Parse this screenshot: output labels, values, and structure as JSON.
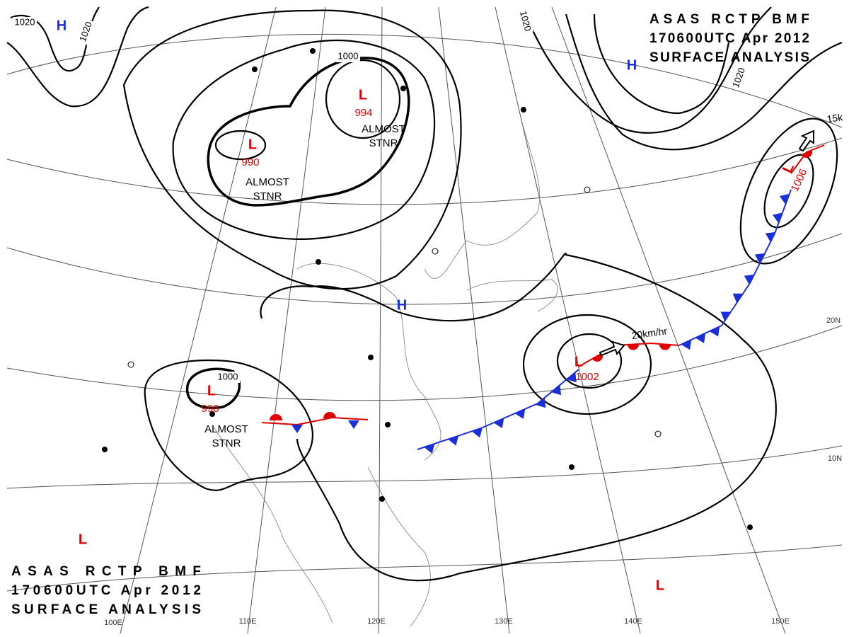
{
  "header": {
    "title_lines": [
      "ASAS RCTP BMF",
      "170600UTC Apr 2012",
      "SURFACE ANALYSIS"
    ]
  },
  "systems": [
    {
      "symbol": "L",
      "pressure": 990,
      "status": [
        "ALMOST",
        "STNR"
      ]
    },
    {
      "symbol": "L",
      "pressure": 994,
      "status": [
        "ALMOST",
        "STNR"
      ]
    },
    {
      "symbol": "L",
      "pressure": 998,
      "status": [
        "ALMOST",
        "STNR"
      ]
    },
    {
      "symbol": "L",
      "pressure": 1002
    },
    {
      "symbol": "L",
      "pressure": 1006
    },
    {
      "symbol": "H"
    },
    {
      "symbol": "H"
    },
    {
      "symbol": "H"
    },
    {
      "symbol": "L"
    },
    {
      "symbol": "L"
    }
  ],
  "isobar_labels": [
    1020,
    1020,
    1000,
    1020,
    1020,
    1000
  ],
  "graticule_labels": [
    "100E",
    "110E",
    "120E",
    "130E",
    "140E",
    "150E",
    "10N",
    "20N"
  ],
  "motion_labels": [
    "20km/hr",
    "15k"
  ]
}
